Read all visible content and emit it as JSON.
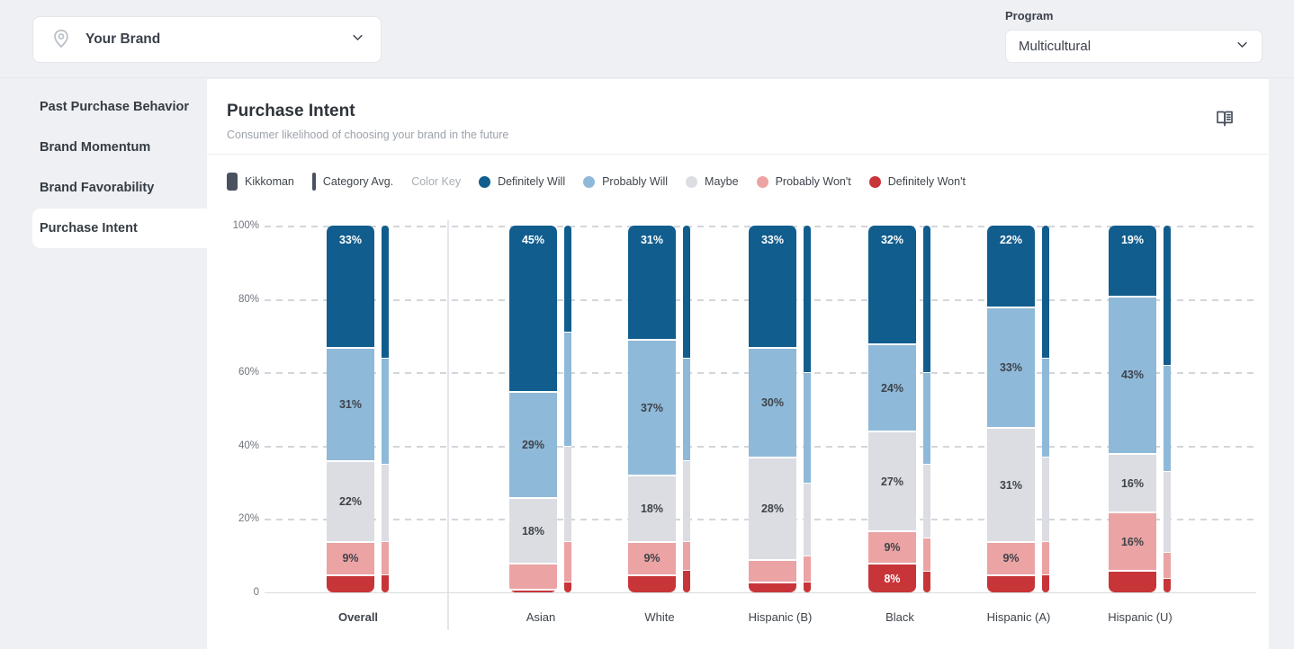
{
  "topbar": {
    "brand_selector": {
      "value": "Your Brand",
      "icon": "location-pin-icon"
    },
    "program": {
      "label": "Program",
      "value": "Multicultural"
    }
  },
  "sidebar": {
    "items": [
      {
        "label": "Past Purchase Behavior",
        "active": false
      },
      {
        "label": "Brand Momentum",
        "active": false
      },
      {
        "label": "Brand Favorability",
        "active": false
      },
      {
        "label": "Purchase Intent",
        "active": true
      }
    ]
  },
  "header": {
    "title": "Purchase Intent",
    "subtitle": "Consumer likelihood of choosing your brand in the future",
    "action_icon": "open-book-icon"
  },
  "legend": {
    "series_markers": [
      {
        "label": "Kikkoman",
        "marker": "wide-bar",
        "color": "#4A5260"
      },
      {
        "label": "Category Avg.",
        "marker": "thin-bar",
        "color": "#4A5260"
      }
    ],
    "color_key_label": "Color Key",
    "color_key": [
      {
        "label": "Definitely Will",
        "color": "#115D8E"
      },
      {
        "label": "Probably Will",
        "color": "#8FB9D9"
      },
      {
        "label": "Maybe",
        "color": "#DBDDE2"
      },
      {
        "label": "Probably Won't",
        "color": "#EBA3A4"
      },
      {
        "label": "Definitely Won't",
        "color": "#C83539"
      }
    ]
  },
  "chart_data": {
    "type": "bar",
    "subtype": "stacked-percent",
    "title": "Purchase Intent",
    "categories": [
      "Overall",
      "Asian",
      "White",
      "Hispanic (B)",
      "Black",
      "Hispanic (A)",
      "Hispanic (U)"
    ],
    "bold_category": "Overall",
    "segment_order": [
      "Definitely Will",
      "Probably Will",
      "Maybe",
      "Probably Won't",
      "Definitely Won't"
    ],
    "segment_colors": [
      "#115D8E",
      "#8FB9D9",
      "#DBDDE2",
      "#EBA3A4",
      "#C83539"
    ],
    "series": [
      {
        "name": "Kikkoman",
        "bar_style": "wide",
        "values": [
          [
            33,
            31,
            22,
            9,
            5
          ],
          [
            45,
            29,
            18,
            7,
            1
          ],
          [
            31,
            37,
            18,
            9,
            5
          ],
          [
            33,
            30,
            28,
            6,
            3
          ],
          [
            32,
            24,
            27,
            9,
            8
          ],
          [
            22,
            33,
            31,
            9,
            5
          ],
          [
            19,
            43,
            16,
            16,
            6
          ]
        ]
      },
      {
        "name": "Category Avg.",
        "bar_style": "thin",
        "values": [
          [
            36,
            29,
            21,
            9,
            5
          ],
          [
            29,
            31,
            26,
            11,
            3
          ],
          [
            36,
            28,
            22,
            8,
            6
          ],
          [
            40,
            30,
            20,
            7,
            3
          ],
          [
            40,
            25,
            20,
            9,
            6
          ],
          [
            36,
            27,
            23,
            9,
            5
          ],
          [
            38,
            29,
            22,
            7,
            4
          ]
        ]
      }
    ],
    "ylim": [
      0,
      100
    ],
    "yticks": [
      "0",
      "20%",
      "40%",
      "60%",
      "80%",
      "100%"
    ],
    "grid": "dashed-horizontal",
    "label_threshold": 8,
    "label_suffix": "%"
  }
}
